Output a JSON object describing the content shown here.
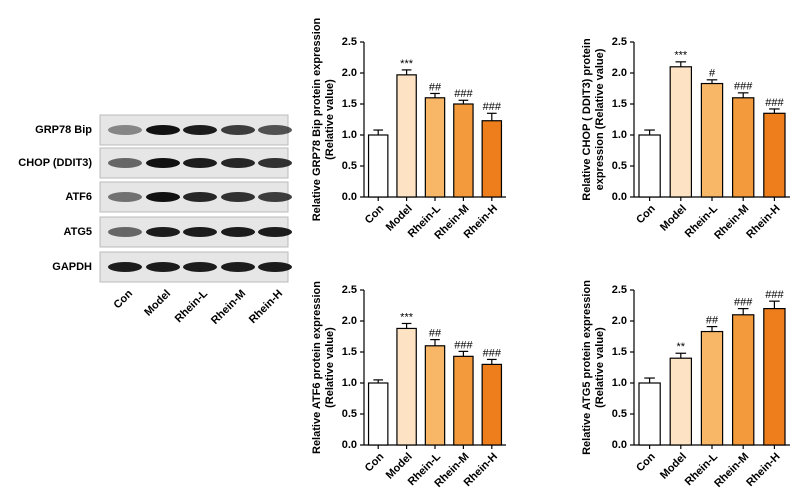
{
  "blot": {
    "rows": [
      "GRP78 Bip",
      "CHOP (DDIT3)",
      "ATF6",
      "ATG5",
      "GAPDH"
    ],
    "lanes": [
      "Con",
      "Model",
      "Rhein-L",
      "Rhein-M",
      "Rhein-H"
    ]
  },
  "chart_data": [
    {
      "type": "bar",
      "ylabel": [
        "Relative GRP78 Bip protein expression",
        "(Relative value)"
      ],
      "categories": [
        "Con",
        "Model",
        "Rhein-L",
        "Rhein-M",
        "Rhein-H"
      ],
      "values": [
        1.0,
        1.97,
        1.6,
        1.5,
        1.23
      ],
      "errors": [
        0.08,
        0.08,
        0.07,
        0.06,
        0.12
      ],
      "annotations": [
        null,
        "***",
        "##",
        "###",
        "###"
      ],
      "colors": [
        "#ffffff",
        "#fde3c4",
        "#f8b766",
        "#f39b3c",
        "#ee7d1b"
      ],
      "ylim": [
        0,
        2.5
      ],
      "yticks": [
        {
          "value": 0,
          "label": "0.0"
        },
        0.5,
        {
          "value": 1,
          "label": "1.0"
        },
        1.5,
        {
          "value": 2,
          "label": "2.0"
        },
        2.5
      ]
    },
    {
      "type": "bar",
      "ylabel": [
        "Relative CHOP ( DDIT3) protein",
        "expression (Relative value)"
      ],
      "categories": [
        "Con",
        "Model",
        "Rhein-L",
        "Rhein-M",
        "Rhein-H"
      ],
      "values": [
        1.0,
        2.1,
        1.83,
        1.6,
        1.35
      ],
      "errors": [
        0.08,
        0.08,
        0.06,
        0.08,
        0.07
      ],
      "annotations": [
        null,
        "***",
        "#",
        "###",
        "###"
      ],
      "colors": [
        "#ffffff",
        "#fde3c4",
        "#f8b766",
        "#f39b3c",
        "#ee7d1b"
      ],
      "ylim": [
        0,
        2.5
      ],
      "yticks": [
        {
          "value": 0,
          "label": "0.0"
        },
        0.5,
        {
          "value": 1,
          "label": "1.0"
        },
        1.5,
        {
          "value": 2,
          "label": "2.0"
        },
        2.5
      ]
    },
    {
      "type": "bar",
      "ylabel": [
        "Relative ATF6 protein expression",
        "(Relative value)"
      ],
      "categories": [
        "Con",
        "Model",
        "Rhein-L",
        "Rhein-M",
        "Rhein-H"
      ],
      "values": [
        1.0,
        1.88,
        1.6,
        1.43,
        1.3
      ],
      "errors": [
        0.05,
        0.08,
        0.1,
        0.08,
        0.08
      ],
      "annotations": [
        null,
        "***",
        "##",
        "###",
        "###"
      ],
      "colors": [
        "#ffffff",
        "#fde3c4",
        "#f8b766",
        "#f39b3c",
        "#ee7d1b"
      ],
      "ylim": [
        0,
        2.5
      ],
      "yticks": [
        {
          "value": 0,
          "label": "0.0"
        },
        0.5,
        {
          "value": 1,
          "label": "1.0"
        },
        1.5,
        {
          "value": 2,
          "label": "2.0"
        },
        2.5
      ]
    },
    {
      "type": "bar",
      "ylabel": [
        "Relative ATG5 protein expression",
        "(Relative value)"
      ],
      "categories": [
        "Con",
        "Model",
        "Rhein-L",
        "Rhein-M",
        "Rhein-H"
      ],
      "values": [
        1.0,
        1.4,
        1.83,
        2.1,
        2.2
      ],
      "errors": [
        0.08,
        0.08,
        0.08,
        0.1,
        0.12
      ],
      "annotations": [
        null,
        "**",
        "##",
        "###",
        "###"
      ],
      "colors": [
        "#ffffff",
        "#fde3c4",
        "#f8b766",
        "#f39b3c",
        "#ee7d1b"
      ],
      "ylim": [
        0,
        2.5
      ],
      "yticks": [
        {
          "value": 0,
          "label": "0.0"
        },
        0.5,
        {
          "value": 1,
          "label": "1.0"
        },
        1.5,
        {
          "value": 2,
          "label": "2.0"
        },
        2.5
      ]
    }
  ]
}
